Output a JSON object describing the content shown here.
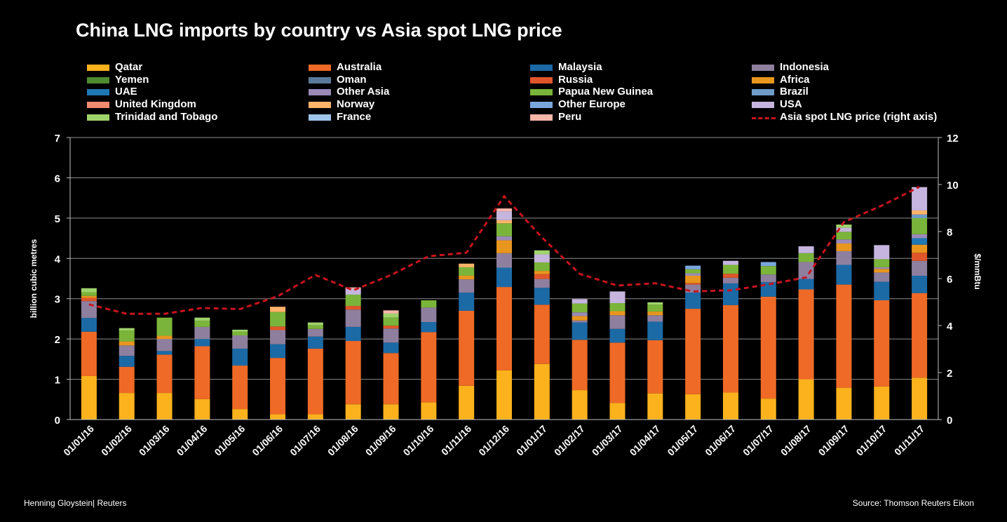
{
  "credit": "Henning Gloystein| Reuters",
  "source": "Source: Thomson Reuters Eikon",
  "legend_line_label": "Asia spot LNG price (right axis)",
  "line_color": "#c8141e",
  "chart_data": {
    "type": "bar",
    "stacked": true,
    "title": "China LNG imports by country vs Asia spot LNG price",
    "ylabel": "billion cubic metres",
    "y2label": "$/mmBtu",
    "ylim": [
      0,
      7
    ],
    "y2lim": [
      0,
      12
    ],
    "yticks": [
      "0",
      "1",
      "2",
      "3",
      "4",
      "5",
      "6",
      "7"
    ],
    "y2ticks": [
      "0",
      "2",
      "4",
      "6",
      "8",
      "10",
      "12"
    ],
    "grid": true,
    "legend_position": "top",
    "categories": [
      "01/01/16",
      "01/02/16",
      "01/03/16",
      "01/04/16",
      "01/05/16",
      "01/06/16",
      "01/07/16",
      "01/08/16",
      "01/09/16",
      "01/10/16",
      "01/11/16",
      "01/12/16",
      "01/01/17",
      "01/02/17",
      "01/03/17",
      "01/04/17",
      "01/05/17",
      "01/06/17",
      "01/07/17",
      "01/08/17",
      "01/09/17",
      "01/10/17",
      "01/11/17"
    ],
    "series": [
      {
        "name": "Qatar",
        "color": "#fbb21c",
        "values": [
          1.08,
          0.66,
          0.66,
          0.51,
          0.26,
          0.13,
          0.13,
          0.38,
          0.38,
          0.43,
          0.84,
          1.22,
          1.38,
          0.73,
          0.41,
          0.65,
          0.63,
          0.67,
          0.52,
          1.0,
          0.79,
          0.82,
          1.04
        ]
      },
      {
        "name": "Australia",
        "color": "#ef6a26",
        "values": [
          1.1,
          0.65,
          0.95,
          1.31,
          1.08,
          1.4,
          1.63,
          1.57,
          1.27,
          1.74,
          1.86,
          2.07,
          1.47,
          1.25,
          1.5,
          1.32,
          2.12,
          2.17,
          2.53,
          2.23,
          2.56,
          2.14,
          2.1
        ]
      },
      {
        "name": "Malaysia",
        "color": "#1b6aa6",
        "values": [
          0.34,
          0.27,
          0.09,
          0.18,
          0.42,
          0.34,
          0.3,
          0.35,
          0.26,
          0.25,
          0.45,
          0.48,
          0.42,
          0.43,
          0.34,
          0.46,
          0.4,
          0.54,
          0.36,
          0.26,
          0.49,
          0.46,
          0.43
        ]
      },
      {
        "name": "Indonesia",
        "color": "#8e7f9e",
        "values": [
          0.42,
          0.26,
          0.3,
          0.3,
          0.33,
          0.35,
          0.19,
          0.43,
          0.35,
          0.36,
          0.33,
          0.36,
          0.22,
          0.05,
          0.34,
          0.16,
          0.2,
          0.14,
          0.19,
          0.42,
          0.34,
          0.23,
          0.37
        ]
      },
      {
        "name": "Yemen",
        "color": "#4f8a2f",
        "values": [
          0,
          0,
          0,
          0,
          0,
          0,
          0,
          0,
          0,
          0,
          0,
          0,
          0,
          0,
          0,
          0,
          0,
          0,
          0,
          0,
          0,
          0,
          0
        ]
      },
      {
        "name": "Oman",
        "color": "#5a7a9a",
        "values": [
          0,
          0,
          0,
          0,
          0,
          0,
          0,
          0,
          0,
          0,
          0,
          0,
          0,
          0,
          0,
          0,
          0,
          0,
          0,
          0,
          0,
          0,
          0
        ]
      },
      {
        "name": "Russia",
        "color": "#e0562a",
        "values": [
          0.08,
          0,
          0,
          0,
          0,
          0.09,
          0,
          0.09,
          0.07,
          0,
          0,
          0,
          0.12,
          0,
          0,
          0,
          0.04,
          0.1,
          0,
          0,
          0,
          0,
          0.2
        ]
      },
      {
        "name": "Africa",
        "color": "#e8961e",
        "values": [
          0.05,
          0.1,
          0.08,
          0,
          0,
          0,
          0,
          0,
          0,
          0,
          0.09,
          0.32,
          0.08,
          0.11,
          0.1,
          0.09,
          0.18,
          0,
          0,
          0,
          0.19,
          0.09,
          0.2
        ]
      },
      {
        "name": "UAE",
        "color": "#1f78b4",
        "values": [
          0,
          0,
          0,
          0,
          0,
          0,
          0,
          0,
          0,
          0,
          0,
          0,
          0,
          0,
          0,
          0,
          0,
          0,
          0,
          0,
          0,
          0,
          0.16
        ]
      },
      {
        "name": "Other Asia",
        "color": "#9b8ab8",
        "values": [
          0,
          0,
          0,
          0,
          0,
          0,
          0,
          0,
          0,
          0,
          0,
          0.1,
          0,
          0.09,
          0,
          0,
          0.06,
          0,
          0,
          0,
          0.1,
          0.04,
          0.1
        ]
      },
      {
        "name": "Papua New Guinea",
        "color": "#7bb43a",
        "values": [
          0.09,
          0.27,
          0.45,
          0.15,
          0.09,
          0.36,
          0.09,
          0.28,
          0.2,
          0.18,
          0.21,
          0.32,
          0.21,
          0.22,
          0.2,
          0.17,
          0.1,
          0.22,
          0.21,
          0.22,
          0.19,
          0.2,
          0.4
        ]
      },
      {
        "name": "Brazil",
        "color": "#6f9bc8",
        "values": [
          0,
          0,
          0,
          0,
          0,
          0,
          0,
          0,
          0,
          0,
          0,
          0,
          0,
          0,
          0,
          0,
          0,
          0,
          0,
          0,
          0,
          0,
          0.09
        ]
      },
      {
        "name": "United Kingdom",
        "color": "#f08a70",
        "values": [
          0,
          0,
          0,
          0,
          0,
          0,
          0,
          0,
          0,
          0,
          0,
          0,
          0,
          0,
          0,
          0,
          0,
          0,
          0,
          0,
          0,
          0,
          0
        ]
      },
      {
        "name": "Norway",
        "color": "#fdb46a",
        "values": [
          0,
          0,
          0,
          0,
          0,
          0.13,
          0,
          0,
          0,
          0,
          0.09,
          0.08,
          0,
          0,
          0,
          0,
          0,
          0,
          0,
          0,
          0,
          0,
          0.1
        ]
      },
      {
        "name": "Other Europe",
        "color": "#7aa6dc",
        "values": [
          0,
          0,
          0,
          0,
          0,
          0,
          0,
          0,
          0,
          0,
          0,
          0,
          0,
          0,
          0,
          0,
          0.09,
          0,
          0.1,
          0,
          0,
          0,
          0
        ]
      },
      {
        "name": "USA",
        "color": "#c6b5de",
        "values": [
          0,
          0,
          0,
          0,
          0,
          0,
          0,
          0.14,
          0,
          0,
          0,
          0.22,
          0.2,
          0.11,
          0.29,
          0,
          0,
          0.1,
          0,
          0.17,
          0.1,
          0.35,
          0.58
        ]
      },
      {
        "name": "Trinidad and Tobago",
        "color": "#9fd36b",
        "values": [
          0.1,
          0.06,
          0,
          0.08,
          0.05,
          0,
          0.07,
          0,
          0.1,
          0,
          0,
          0,
          0.1,
          0,
          0,
          0.06,
          0,
          0,
          0,
          0,
          0.08,
          0,
          0
        ]
      },
      {
        "name": "France",
        "color": "#9ec4ec",
        "values": [
          0,
          0,
          0,
          0,
          0,
          0,
          0,
          0,
          0,
          0,
          0,
          0,
          0,
          0,
          0,
          0,
          0,
          0,
          0,
          0,
          0,
          0,
          0
        ]
      },
      {
        "name": "Peru",
        "color": "#f7b6a8",
        "values": [
          0,
          0,
          0,
          0,
          0,
          0,
          0,
          0.04,
          0.08,
          0,
          0,
          0.07,
          0,
          0,
          0,
          0,
          0,
          0,
          0,
          0,
          0,
          0,
          0
        ]
      }
    ],
    "line_series": {
      "name": "Asia spot LNG price (right axis)",
      "axis": "right",
      "values": [
        4.9,
        4.5,
        4.5,
        4.75,
        4.7,
        5.25,
        6.15,
        5.5,
        6.15,
        6.95,
        7.1,
        9.5,
        7.75,
        6.2,
        5.7,
        5.8,
        5.45,
        5.5,
        5.75,
        6.05,
        8.4,
        9.1,
        9.9
      ]
    }
  }
}
